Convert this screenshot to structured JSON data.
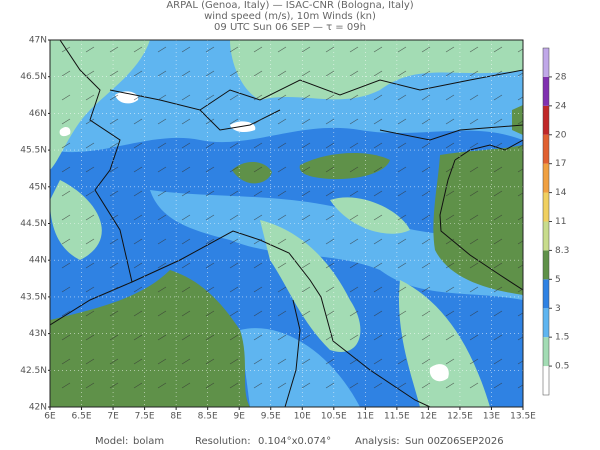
{
  "header": {
    "line1": "ARPAL (Genoa, Italy)  —  ISAC-CNR (Bologna, Italy)",
    "line2": "wind speed (m/s), 10m Winds (kn)",
    "line3": "09 UTC Sun 06 SEP  —  τ = 09h"
  },
  "map": {
    "lon_labels": [
      "6E",
      "6.5E",
      "7E",
      "7.5E",
      "8E",
      "8.5E",
      "9E",
      "9.5E",
      "10E",
      "10.5E",
      "11E",
      "11.5E",
      "12E",
      "12.5E",
      "13E",
      "13.5E"
    ],
    "lat_labels": [
      "47N",
      "46.5N",
      "46N",
      "45.5N",
      "45N",
      "44.5N",
      "44N",
      "43.5N",
      "43N",
      "42.5N",
      "42N"
    ]
  },
  "colorbar": {
    "ticks": [
      0.5,
      1.5,
      3,
      5,
      8.3,
      11,
      14,
      17,
      20,
      24,
      28
    ],
    "colors": [
      "#ffffff",
      "#a3dcb4",
      "#5fb5f0",
      "#2f82e3",
      "#5f9149",
      "#c8dc8c",
      "#f0d060",
      "#f0a040",
      "#e06030",
      "#c02828",
      "#8030b0",
      "#c0a8e8"
    ]
  },
  "footer": {
    "model_label": "Model:",
    "model": "bolam",
    "resolution_label": "Resolution:",
    "resolution": "0.104°x0.074°",
    "analysis_label": "Analysis:",
    "analysis": "Sun 00Z06SEP2026"
  }
}
